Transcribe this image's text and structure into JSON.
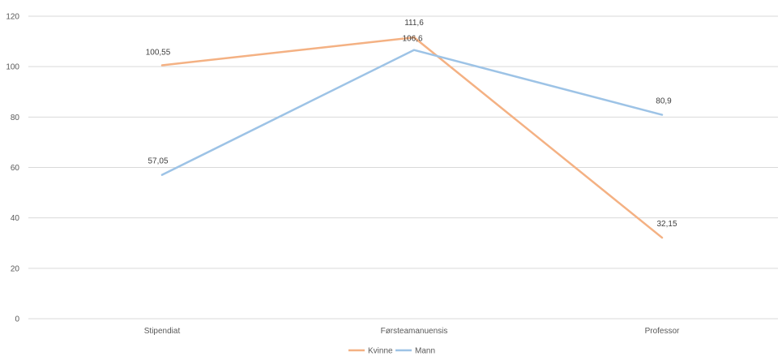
{
  "chart_data": {
    "type": "line",
    "categories": [
      "Stipendiat",
      "Førsteamanuensis",
      "Professor"
    ],
    "series": [
      {
        "name": "Kvinne",
        "color": "#F4B183",
        "values": [
          100.55,
          111.6,
          32.15
        ],
        "labels": [
          "100,55",
          "111,6",
          "32,15"
        ]
      },
      {
        "name": "Mann",
        "color": "#9DC3E6",
        "values": [
          57.05,
          106.6,
          80.9
        ],
        "labels": [
          "57,05",
          "106,6",
          "80,9"
        ]
      }
    ],
    "yticks": [
      "0",
      "20",
      "40",
      "60",
      "80",
      "100",
      "120"
    ],
    "ylim": [
      0,
      120
    ],
    "grid": true,
    "legend": "bottom-center",
    "title": "",
    "xlabel": "",
    "ylabel": ""
  }
}
